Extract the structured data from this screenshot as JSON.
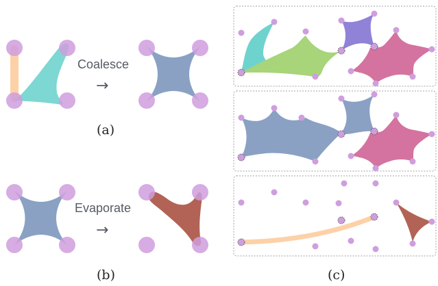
{
  "labels": {
    "coalesce": "Coalesce",
    "evaporate": "Evaporate",
    "arrow": "→",
    "caption_a": "(a)",
    "caption_b": "(b)",
    "caption_c": "(c)"
  },
  "colors": {
    "node": "#cf9ede",
    "cyan": "#6fd3cd",
    "orange": "#fdd1a7",
    "blue": "#8aa1c4",
    "green": "#a8d47a",
    "purple": "#9082d6",
    "pink": "#d4739f",
    "brown": "#b26355",
    "panel_border": "#a0a0a0"
  }
}
